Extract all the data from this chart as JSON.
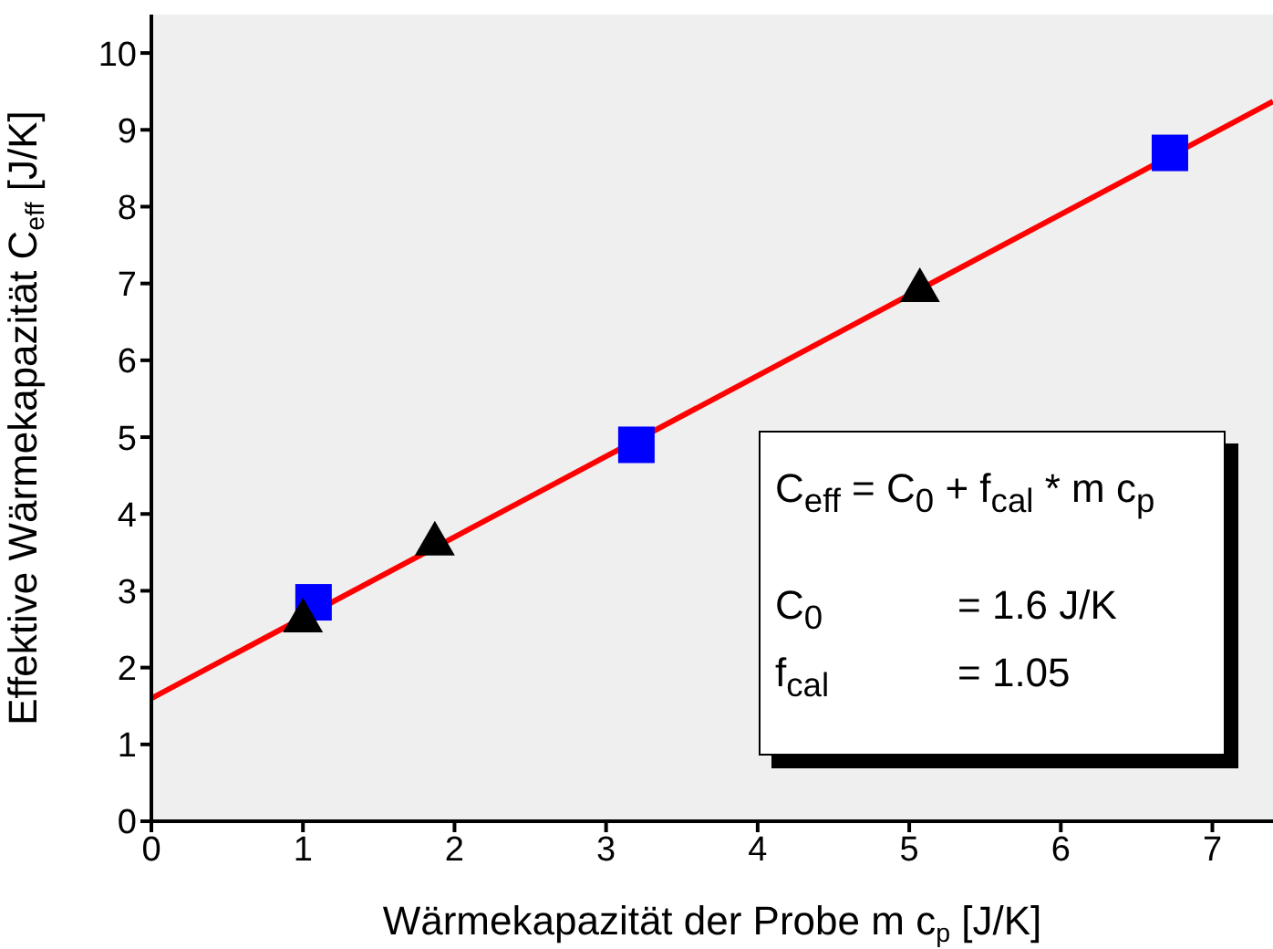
{
  "chart_data": {
    "type": "scatter",
    "xlabel": "Wärmekapazität der Probe m c$_{p}$ [J/K]",
    "ylabel": "Effektive Wärmekapazität C$_{eff}$ [J/K]",
    "xlim": [
      0,
      7.4
    ],
    "ylim": [
      0,
      10.5
    ],
    "xticks": [
      0,
      1,
      2,
      3,
      4,
      5,
      6,
      7
    ],
    "yticks": [
      0,
      1,
      2,
      3,
      4,
      5,
      6,
      7,
      8,
      9,
      10
    ],
    "grid": false,
    "legend": false,
    "series": [
      {
        "marker": "square",
        "color": "#0000ff",
        "x": [
          1.07,
          3.2,
          6.72
        ],
        "values": [
          2.85,
          4.9,
          8.7
        ]
      },
      {
        "marker": "triangle",
        "color": "#000000",
        "x": [
          1.0,
          1.87,
          5.07
        ],
        "values": [
          2.65,
          3.65,
          6.95
        ]
      },
      {
        "type": "line",
        "marker": "none",
        "color": "#ff0000",
        "x": [
          0,
          7.4
        ],
        "values": [
          1.6,
          9.37
        ]
      }
    ],
    "annotations": [
      "C$_{eff}$ = C$_{0}$ + f$_{cal}$ * m c$_{p}$",
      "C$_{0}$ = 1.6 J/K",
      "f$_{cal}$ = 1.05"
    ]
  }
}
